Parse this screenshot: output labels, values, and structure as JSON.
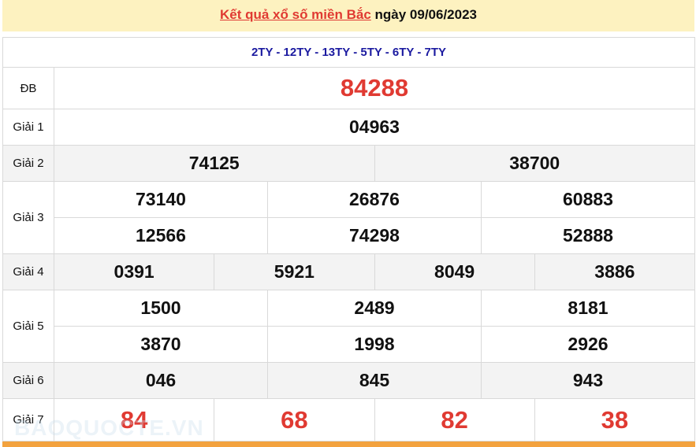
{
  "header": {
    "link": "Kết quả xổ số miền Bắc",
    "date_text": "ngày 09/06/2023"
  },
  "codes": "2TY - 12TY - 13TY - 5TY - 6TY - 7TY",
  "prizes": {
    "db": {
      "label": "ĐB",
      "values": [
        "84288"
      ]
    },
    "g1": {
      "label": "Giải 1",
      "values": [
        "04963"
      ]
    },
    "g2": {
      "label": "Giải 2",
      "values": [
        "74125",
        "38700"
      ]
    },
    "g3": {
      "label": "Giải 3",
      "values": [
        "73140",
        "26876",
        "60883",
        "12566",
        "74298",
        "52888"
      ]
    },
    "g4": {
      "label": "Giải 4",
      "values": [
        "0391",
        "5921",
        "8049",
        "3886"
      ]
    },
    "g5": {
      "label": "Giải 5",
      "values": [
        "1500",
        "2489",
        "8181",
        "3870",
        "1998",
        "2926"
      ]
    },
    "g6": {
      "label": "Giải 6",
      "values": [
        "046",
        "845",
        "943"
      ]
    },
    "g7": {
      "label": "Giải 7",
      "values": [
        "84",
        "68",
        "82",
        "38"
      ]
    }
  },
  "watermark": "BAOQUOCTE.VN",
  "colors": {
    "accent_red": "#e03a32",
    "code_blue": "#1b1aa0",
    "header_bg": "#fdf2c0",
    "footer_bar": "#f3a23e"
  }
}
